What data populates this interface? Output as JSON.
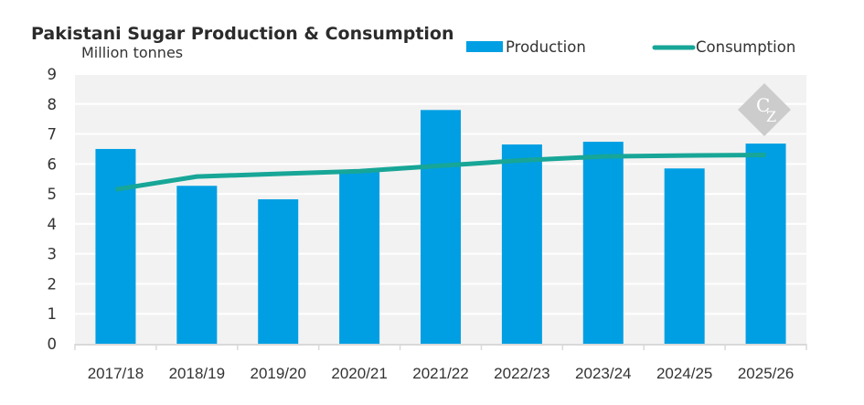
{
  "chart_data": {
    "type": "bar",
    "title": "Pakistani Sugar Production & Consumption",
    "subtitle": "Million tonnes",
    "xlabel": "",
    "ylabel": "Million tonnes",
    "ylim": [
      0,
      9
    ],
    "yticks": [
      0,
      1,
      2,
      3,
      4,
      5,
      6,
      7,
      8,
      9
    ],
    "grid": true,
    "legend_position": "top-right",
    "categories": [
      "2017/18",
      "2018/19",
      "2019/20",
      "2020/21",
      "2021/22",
      "2022/23",
      "2023/24",
      "2024/25",
      "2025/26"
    ],
    "series": [
      {
        "name": "Production",
        "type": "bar",
        "color": "#009fe3",
        "values": [
          6.5,
          5.27,
          4.82,
          5.73,
          7.8,
          6.65,
          6.74,
          5.85,
          6.68
        ]
      },
      {
        "name": "Consumption",
        "type": "line",
        "color": "#17a697",
        "values": [
          5.15,
          5.58,
          5.67,
          5.76,
          5.94,
          6.12,
          6.25,
          6.28,
          6.3
        ]
      }
    ],
    "watermark": "CZ"
  },
  "colors": {
    "plot_background": "#f2f2f2",
    "gridline": "#ffffff",
    "axis": "#d9d9d9",
    "text": "#333333"
  }
}
